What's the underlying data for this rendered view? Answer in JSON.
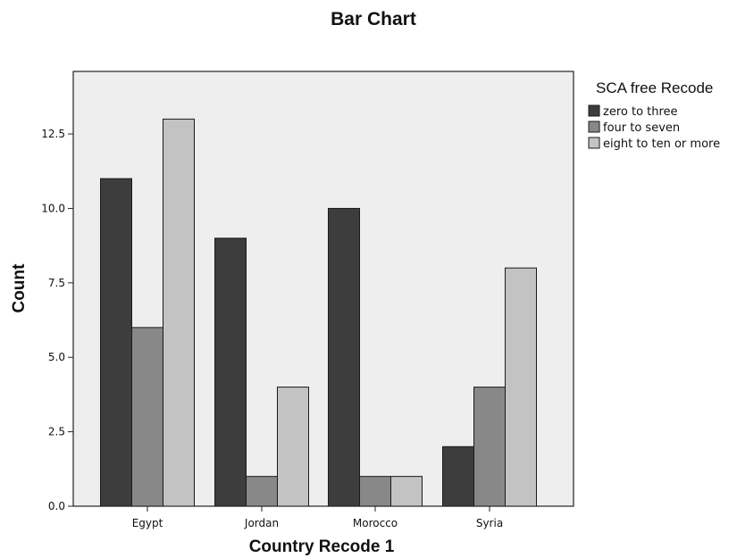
{
  "chart_data": {
    "type": "bar",
    "title": "Bar Chart",
    "xlabel": "Country Recode 1",
    "ylabel": "Count",
    "categories": [
      "Egypt",
      "Jordan",
      "Morocco",
      "Syria"
    ],
    "series": [
      {
        "name": "zero to three",
        "color": "#3d3d3d",
        "values": [
          11,
          9,
          10,
          2
        ]
      },
      {
        "name": "four to seven",
        "color": "#888888",
        "values": [
          6,
          1,
          1,
          4
        ]
      },
      {
        "name": "eight to ten or more",
        "color": "#c3c3c3",
        "values": [
          13,
          4,
          1,
          8
        ]
      }
    ],
    "ylim": [
      0,
      14.6
    ],
    "yticks": [
      0,
      2.5,
      5,
      7.5,
      10,
      12.5
    ],
    "ytick_labels": [
      "0.0",
      "2.5",
      "5.0",
      "7.5",
      "10.0",
      "12.5"
    ],
    "grid": false,
    "legend": {
      "title": "SCA free Recode",
      "placement": "right"
    },
    "plot_background": "#eeeeee"
  }
}
